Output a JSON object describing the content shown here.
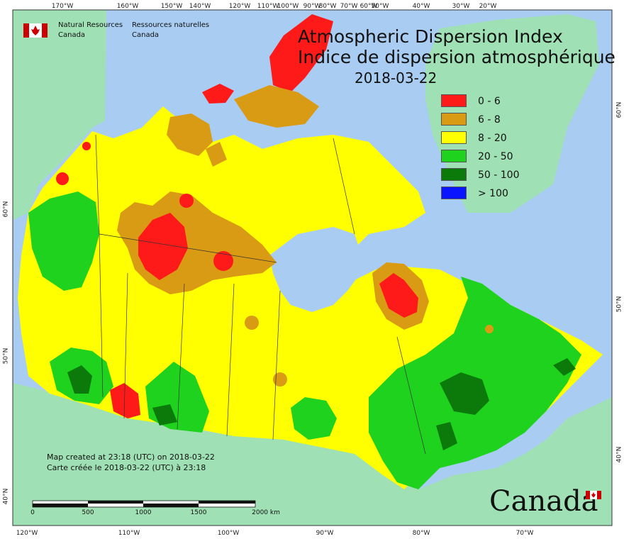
{
  "map": {
    "title_en": "Atmospheric Dispersion Index",
    "title_fr": "Indice de dispersion atmosphérique",
    "date": "2018-03-22"
  },
  "agency": {
    "name_en_line1": "Natural Resources",
    "name_en_line2": "Canada",
    "name_fr_line1": "Ressources naturelles",
    "name_fr_line2": "Canada",
    "wordmark": "Canada"
  },
  "legend": [
    {
      "label": "0 - 6",
      "color": "#ff1a1a"
    },
    {
      "label": "6 - 8",
      "color": "#d99b14"
    },
    {
      "label": "8 - 20",
      "color": "#ffff00"
    },
    {
      "label": "20 - 50",
      "color": "#1ed21e"
    },
    {
      "label": "50 - 100",
      "color": "#0b7a0b"
    },
    {
      "label": "> 100",
      "color": "#0a14ff"
    }
  ],
  "credits": {
    "created_en": "Map created at 23:18 (UTC) on 2018-03-22",
    "created_fr": "Carte créée le 2018-03-22 (UTC) à 23:18"
  },
  "scale": {
    "labels": [
      "0",
      "500",
      "1000",
      "1500",
      "2000 km"
    ]
  },
  "graticule": {
    "top": [
      "170°W",
      "160°W",
      "150°W",
      "140°W",
      "120°W",
      "110°W",
      "100°W",
      "90°W",
      "80°W",
      "70°W",
      "60°W",
      "50°W",
      "40°W",
      "30°W",
      "20°W"
    ],
    "bottom": [
      "120°W",
      "110°W",
      "100°W",
      "90°W",
      "80°W",
      "70°W"
    ],
    "left": [
      "60°N",
      "50°N",
      "40°N"
    ],
    "right": [
      "60°N",
      "50°N",
      "40°N"
    ]
  },
  "colors": {
    "water": "#a9cdf2",
    "land_outside": "#9fe0b4"
  }
}
